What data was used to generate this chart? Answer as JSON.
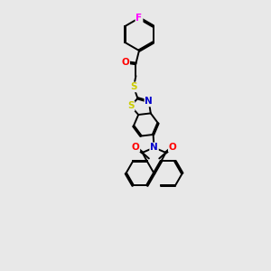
{
  "bg_color": "#e8e8e8",
  "bond_color": "#000000",
  "atom_colors": {
    "F": "#ff00ff",
    "O": "#ff0000",
    "N": "#0000cc",
    "S": "#cccc00",
    "C": "#000000"
  },
  "lw": 1.4,
  "dbo": 0.042,
  "figsize": [
    3.0,
    3.0
  ],
  "dpi": 100,
  "xlim": [
    0,
    10
  ],
  "ylim": [
    0,
    15
  ]
}
